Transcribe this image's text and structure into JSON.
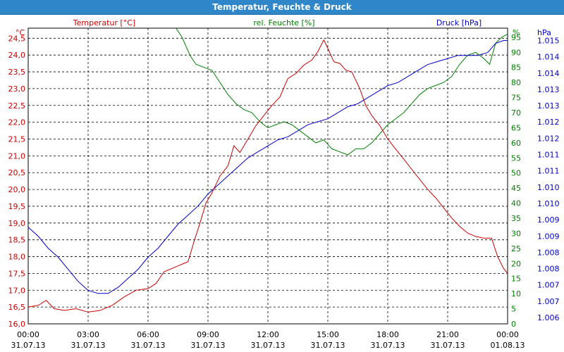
{
  "title": "Temperatur, Feuchte & Druck",
  "axis_labels": {
    "temperature": "Temperatur [°C]",
    "humidity": "rel. Feuchte [%]",
    "pressure": "Druck [hPa]",
    "unit_temp": "°C",
    "unit_hum": "%",
    "unit_press": "hPa"
  },
  "colors": {
    "temperature": "#cc0000",
    "humidity": "#008000",
    "pressure": "#0000cc",
    "titlebar": "#2f86c8",
    "grid": "#000000"
  },
  "chart_data": {
    "type": "line",
    "title": "Temperatur, Feuchte & Druck",
    "grid": true,
    "x_ticks": [
      {
        "time": "00:00",
        "date": "31.07.13"
      },
      {
        "time": "03:00",
        "date": "31.07.13"
      },
      {
        "time": "06:00",
        "date": "31.07.13"
      },
      {
        "time": "09:00",
        "date": "31.07.13"
      },
      {
        "time": "12:00",
        "date": "31.07.13"
      },
      {
        "time": "15:00",
        "date": "31.07.13"
      },
      {
        "time": "18:00",
        "date": "31.07.13"
      },
      {
        "time": "21:00",
        "date": "31.07.13"
      },
      {
        "time": "00:00",
        "date": "01.08.13"
      }
    ],
    "x_range_hours": [
      0,
      24
    ],
    "temperature_axis": {
      "range": [
        16.0,
        24.8
      ],
      "ticks": [
        "16,0",
        "16,5",
        "17,0",
        "17,5",
        "18,0",
        "18,5",
        "19,0",
        "19,5",
        "20,0",
        "20,5",
        "21,0",
        "21,5",
        "22,0",
        "22,5",
        "23,0",
        "23,5",
        "24,0",
        "24,5"
      ]
    },
    "humidity_axis": {
      "range": [
        0,
        98
      ],
      "ticks": [
        "0",
        "5",
        "10",
        "15",
        "20",
        "25",
        "30",
        "35",
        "40",
        "45",
        "50",
        "55",
        "60",
        "65",
        "70",
        "75",
        "80",
        "85",
        "90",
        "95"
      ]
    },
    "pressure_axis": {
      "ticks": [
        "1.006",
        "1.007",
        "1.007",
        "1.008",
        "1.008",
        "1.009",
        "1.009",
        "1.010",
        "1.010",
        "1.011",
        "1.011",
        "1.012",
        "1.012",
        "1.013",
        "1.013",
        "1.014",
        "1.014",
        "1.015"
      ]
    },
    "series": [
      {
        "name": "Temperatur [°C]",
        "axis": "temperature",
        "points": [
          [
            0,
            16.5
          ],
          [
            0.5,
            16.55
          ],
          [
            0.9,
            16.7
          ],
          [
            1.3,
            16.45
          ],
          [
            1.8,
            16.4
          ],
          [
            2.4,
            16.45
          ],
          [
            3.0,
            16.35
          ],
          [
            3.6,
            16.4
          ],
          [
            4.2,
            16.55
          ],
          [
            4.8,
            16.8
          ],
          [
            5.4,
            17.0
          ],
          [
            6.0,
            17.05
          ],
          [
            6.4,
            17.2
          ],
          [
            6.8,
            17.55
          ],
          [
            7.2,
            17.65
          ],
          [
            7.6,
            17.75
          ],
          [
            8.0,
            17.85
          ],
          [
            8.3,
            18.45
          ],
          [
            8.6,
            19.0
          ],
          [
            8.9,
            19.6
          ],
          [
            9.2,
            19.9
          ],
          [
            9.6,
            20.4
          ],
          [
            10.0,
            20.7
          ],
          [
            10.3,
            21.3
          ],
          [
            10.6,
            21.1
          ],
          [
            11.0,
            21.5
          ],
          [
            11.4,
            21.9
          ],
          [
            11.8,
            22.2
          ],
          [
            12.2,
            22.5
          ],
          [
            12.6,
            22.75
          ],
          [
            13.0,
            23.3
          ],
          [
            13.4,
            23.45
          ],
          [
            13.8,
            23.7
          ],
          [
            14.2,
            23.85
          ],
          [
            14.5,
            24.1
          ],
          [
            14.8,
            24.45
          ],
          [
            15.0,
            24.2
          ],
          [
            15.3,
            23.8
          ],
          [
            15.6,
            23.75
          ],
          [
            15.9,
            23.55
          ],
          [
            16.2,
            23.5
          ],
          [
            16.6,
            23.0
          ],
          [
            16.9,
            22.5
          ],
          [
            17.2,
            22.2
          ],
          [
            17.6,
            21.9
          ],
          [
            18.0,
            21.5
          ],
          [
            18.4,
            21.2
          ],
          [
            18.8,
            20.9
          ],
          [
            19.2,
            20.6
          ],
          [
            19.6,
            20.3
          ],
          [
            20.0,
            20.0
          ],
          [
            20.4,
            19.75
          ],
          [
            20.8,
            19.45
          ],
          [
            21.2,
            19.15
          ],
          [
            21.6,
            18.9
          ],
          [
            22.0,
            18.7
          ],
          [
            22.4,
            18.6
          ],
          [
            22.8,
            18.55
          ],
          [
            23.2,
            18.55
          ],
          [
            23.5,
            18.0
          ],
          [
            23.8,
            17.65
          ],
          [
            24.0,
            17.5
          ]
        ]
      },
      {
        "name": "rel. Feuchte [%]",
        "axis": "humidity",
        "points": [
          [
            7.4,
            98
          ],
          [
            7.7,
            95
          ],
          [
            8.1,
            89
          ],
          [
            8.4,
            86
          ],
          [
            8.8,
            85
          ],
          [
            9.2,
            84
          ],
          [
            9.6,
            80
          ],
          [
            10.0,
            76
          ],
          [
            10.4,
            73
          ],
          [
            10.8,
            71
          ],
          [
            11.2,
            70
          ],
          [
            11.6,
            67
          ],
          [
            12.0,
            65
          ],
          [
            12.4,
            66
          ],
          [
            12.8,
            67
          ],
          [
            13.2,
            66
          ],
          [
            13.6,
            64
          ],
          [
            14.0,
            62
          ],
          [
            14.4,
            60
          ],
          [
            14.8,
            61
          ],
          [
            15.2,
            58
          ],
          [
            15.6,
            57
          ],
          [
            16.0,
            56
          ],
          [
            16.4,
            58
          ],
          [
            16.8,
            58
          ],
          [
            17.2,
            60
          ],
          [
            17.6,
            63
          ],
          [
            18.0,
            66
          ],
          [
            18.4,
            68
          ],
          [
            18.8,
            70
          ],
          [
            19.2,
            73
          ],
          [
            19.6,
            76
          ],
          [
            20.0,
            78
          ],
          [
            20.4,
            79
          ],
          [
            20.8,
            80
          ],
          [
            21.2,
            82
          ],
          [
            21.6,
            86
          ],
          [
            22.0,
            89
          ],
          [
            22.4,
            90
          ],
          [
            22.8,
            88
          ],
          [
            23.1,
            86
          ],
          [
            23.4,
            93
          ],
          [
            23.7,
            95
          ],
          [
            24.0,
            96
          ]
        ]
      },
      {
        "name": "Druck [hPa]",
        "axis": "pressure",
        "points": [
          [
            0,
            1.009
          ],
          [
            0.5,
            1.0087
          ],
          [
            1.0,
            1.0083
          ],
          [
            1.5,
            1.008
          ],
          [
            2.0,
            1.0076
          ],
          [
            2.5,
            1.0072
          ],
          [
            3.0,
            1.0069
          ],
          [
            3.5,
            1.0068
          ],
          [
            4.0,
            1.0068
          ],
          [
            4.5,
            1.007
          ],
          [
            5.0,
            1.0073
          ],
          [
            5.5,
            1.0076
          ],
          [
            6.0,
            1.008
          ],
          [
            6.5,
            1.0083
          ],
          [
            7.0,
            1.0087
          ],
          [
            7.5,
            1.0091
          ],
          [
            8.0,
            1.0094
          ],
          [
            8.5,
            1.0097
          ],
          [
            9.0,
            1.0101
          ],
          [
            9.5,
            1.0104
          ],
          [
            10.0,
            1.0107
          ],
          [
            10.5,
            1.011
          ],
          [
            11.0,
            1.0113
          ],
          [
            11.5,
            1.0115
          ],
          [
            12.0,
            1.0117
          ],
          [
            12.5,
            1.0119
          ],
          [
            13.0,
            1.012
          ],
          [
            13.5,
            1.0122
          ],
          [
            14.0,
            1.0124
          ],
          [
            14.5,
            1.0125
          ],
          [
            15.0,
            1.0126
          ],
          [
            15.5,
            1.0128
          ],
          [
            16.0,
            1.013
          ],
          [
            16.5,
            1.0131
          ],
          [
            17.0,
            1.0133
          ],
          [
            17.5,
            1.0135
          ],
          [
            18.0,
            1.0137
          ],
          [
            18.5,
            1.0138
          ],
          [
            19.0,
            1.014
          ],
          [
            19.5,
            1.0142
          ],
          [
            20.0,
            1.0144
          ],
          [
            20.5,
            1.0145
          ],
          [
            21.0,
            1.0146
          ],
          [
            21.5,
            1.0147
          ],
          [
            22.0,
            1.0147
          ],
          [
            22.5,
            1.0147
          ],
          [
            23.0,
            1.0148
          ],
          [
            23.4,
            1.0151
          ],
          [
            23.8,
            1.0152
          ],
          [
            24.0,
            1.0152
          ]
        ]
      }
    ]
  }
}
